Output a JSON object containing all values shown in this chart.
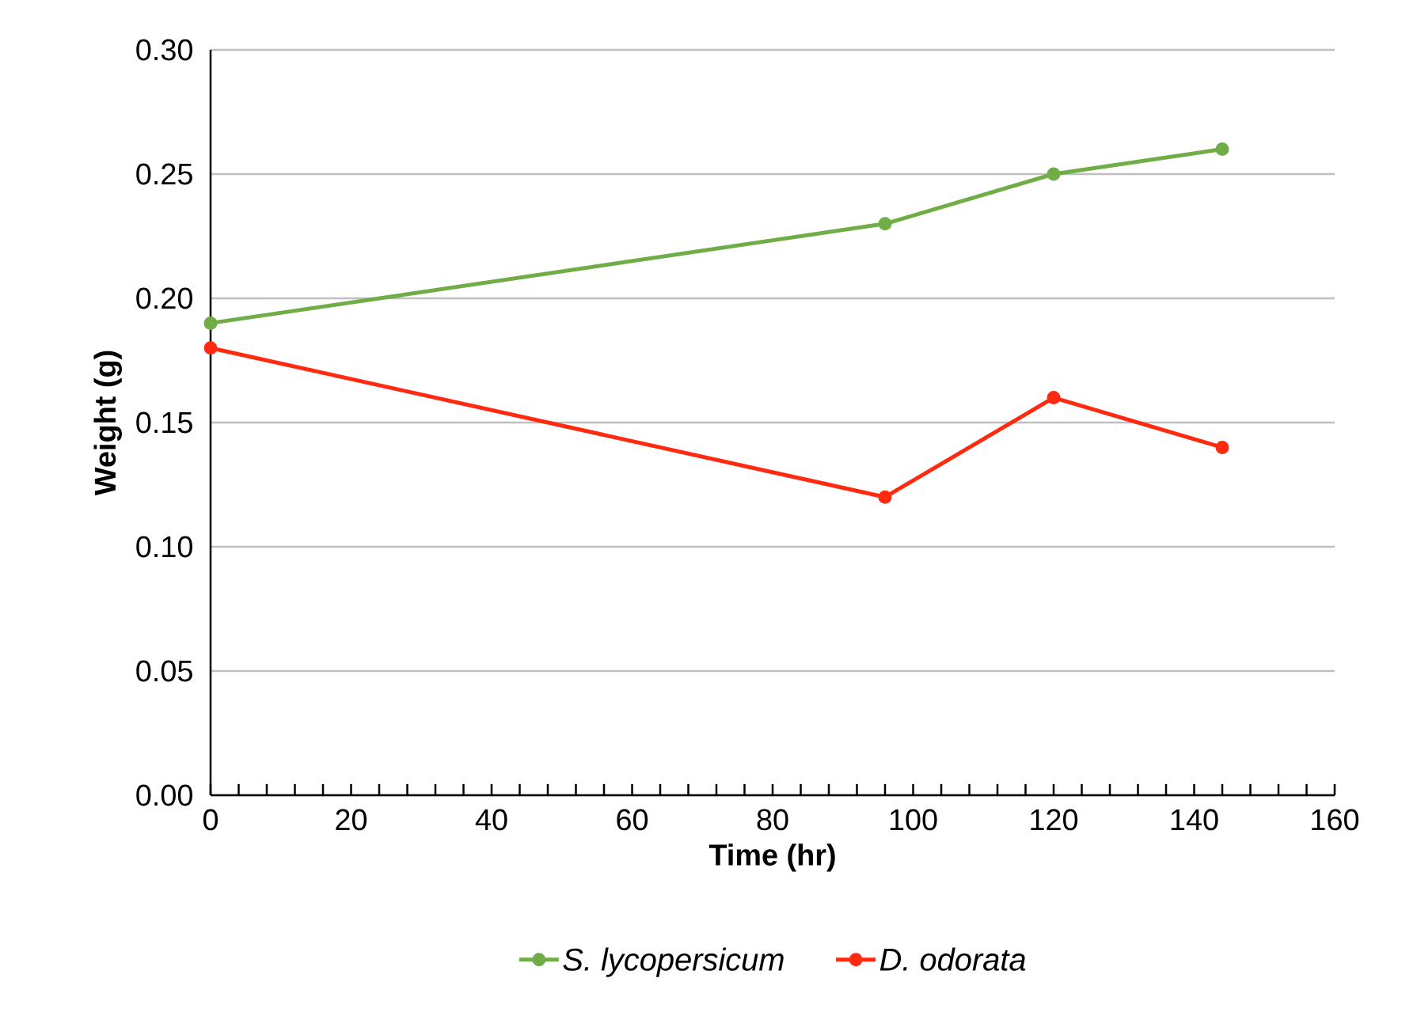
{
  "chart_data": {
    "type": "line",
    "xlabel": "Time (hr)",
    "ylabel": "Weight (g)",
    "x": [
      0,
      96,
      120,
      144
    ],
    "series": [
      {
        "name": "S. lycopersicum",
        "color": "#70ad47",
        "values": [
          0.19,
          0.23,
          0.25,
          0.26
        ]
      },
      {
        "name": "D. odorata",
        "color": "#ff2a10",
        "values": [
          0.18,
          0.12,
          0.16,
          0.14
        ]
      }
    ],
    "xlim": [
      0,
      160
    ],
    "xticks": [
      0,
      20,
      40,
      60,
      80,
      100,
      120,
      140,
      160
    ],
    "ylim": [
      0,
      0.3
    ],
    "yticks": [
      {
        "value": 0,
        "label": "0.00"
      },
      {
        "value": 0.05,
        "label": "0.05"
      },
      {
        "value": 0.1,
        "label": "0.10"
      },
      {
        "value": 0.15,
        "label": "0.15"
      },
      {
        "value": 0.2,
        "label": "0.20"
      },
      {
        "value": 0.25,
        "label": "0.25"
      },
      {
        "value": 0.3,
        "label": "0.30"
      }
    ],
    "grid": "y",
    "legend": "bottom",
    "marker": "circle",
    "line_style": "solid"
  }
}
